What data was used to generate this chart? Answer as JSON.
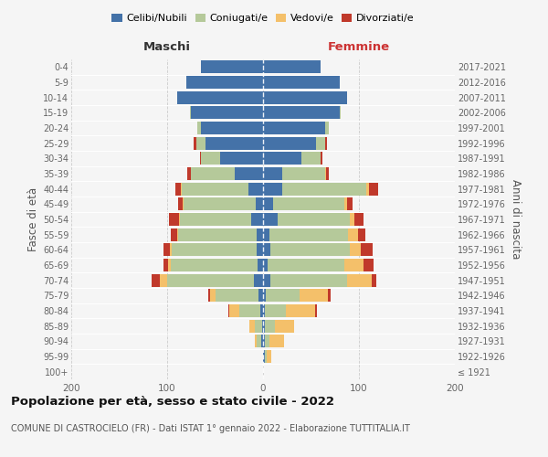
{
  "age_groups": [
    "100+",
    "95-99",
    "90-94",
    "85-89",
    "80-84",
    "75-79",
    "70-74",
    "65-69",
    "60-64",
    "55-59",
    "50-54",
    "45-49",
    "40-44",
    "35-39",
    "30-34",
    "25-29",
    "20-24",
    "15-19",
    "10-14",
    "5-9",
    "0-4"
  ],
  "birth_years": [
    "≤ 1921",
    "1922-1926",
    "1927-1931",
    "1932-1936",
    "1937-1941",
    "1942-1946",
    "1947-1951",
    "1952-1956",
    "1957-1961",
    "1962-1966",
    "1967-1971",
    "1972-1976",
    "1977-1981",
    "1982-1986",
    "1987-1991",
    "1992-1996",
    "1997-2001",
    "2002-2006",
    "2007-2011",
    "2012-2016",
    "2017-2021"
  ],
  "males": {
    "celibi": [
      0,
      0,
      2,
      1,
      3,
      5,
      10,
      6,
      7,
      7,
      12,
      8,
      15,
      30,
      45,
      60,
      65,
      75,
      90,
      80,
      65
    ],
    "coniugati": [
      0,
      0,
      5,
      8,
      22,
      45,
      90,
      90,
      88,
      82,
      75,
      75,
      70,
      45,
      20,
      10,
      4,
      1,
      0,
      0,
      0
    ],
    "vedovi": [
      0,
      0,
      2,
      5,
      10,
      5,
      8,
      3,
      2,
      1,
      1,
      1,
      1,
      0,
      0,
      0,
      0,
      0,
      0,
      0,
      0
    ],
    "divorziati": [
      0,
      0,
      0,
      0,
      1,
      2,
      8,
      5,
      7,
      6,
      10,
      5,
      5,
      4,
      1,
      2,
      0,
      0,
      0,
      0,
      0
    ]
  },
  "females": {
    "nubili": [
      0,
      2,
      2,
      2,
      2,
      3,
      8,
      5,
      8,
      7,
      15,
      10,
      20,
      20,
      40,
      55,
      65,
      80,
      88,
      80,
      60
    ],
    "coniugate": [
      0,
      2,
      5,
      10,
      22,
      35,
      80,
      80,
      82,
      82,
      75,
      75,
      88,
      45,
      20,
      10,
      4,
      1,
      0,
      0,
      0
    ],
    "vedove": [
      0,
      5,
      15,
      20,
      30,
      30,
      25,
      20,
      12,
      10,
      5,
      3,
      2,
      1,
      0,
      0,
      0,
      0,
      0,
      0,
      0
    ],
    "divorziate": [
      0,
      0,
      0,
      0,
      2,
      2,
      5,
      10,
      12,
      8,
      10,
      5,
      10,
      3,
      2,
      2,
      0,
      0,
      0,
      0,
      0
    ]
  },
  "colors": {
    "celibi_nubili": "#4472a8",
    "coniugati": "#b5c99a",
    "vedovi": "#f4c06a",
    "divorziati": "#c0392b"
  },
  "title": "Popolazione per età, sesso e stato civile - 2022",
  "subtitle": "COMUNE DI CASTROCIELO (FR) - Dati ISTAT 1° gennaio 2022 - Elaborazione TUTTITALIA.IT",
  "xlabel_left": "Maschi",
  "xlabel_right": "Femmine",
  "ylabel_left": "Fasce di età",
  "ylabel_right": "Anni di nascita",
  "xlim": 200,
  "legend_labels": [
    "Celibi/Nubili",
    "Coniugati/e",
    "Vedovi/e",
    "Divorziati/e"
  ],
  "background_color": "#f5f5f5"
}
